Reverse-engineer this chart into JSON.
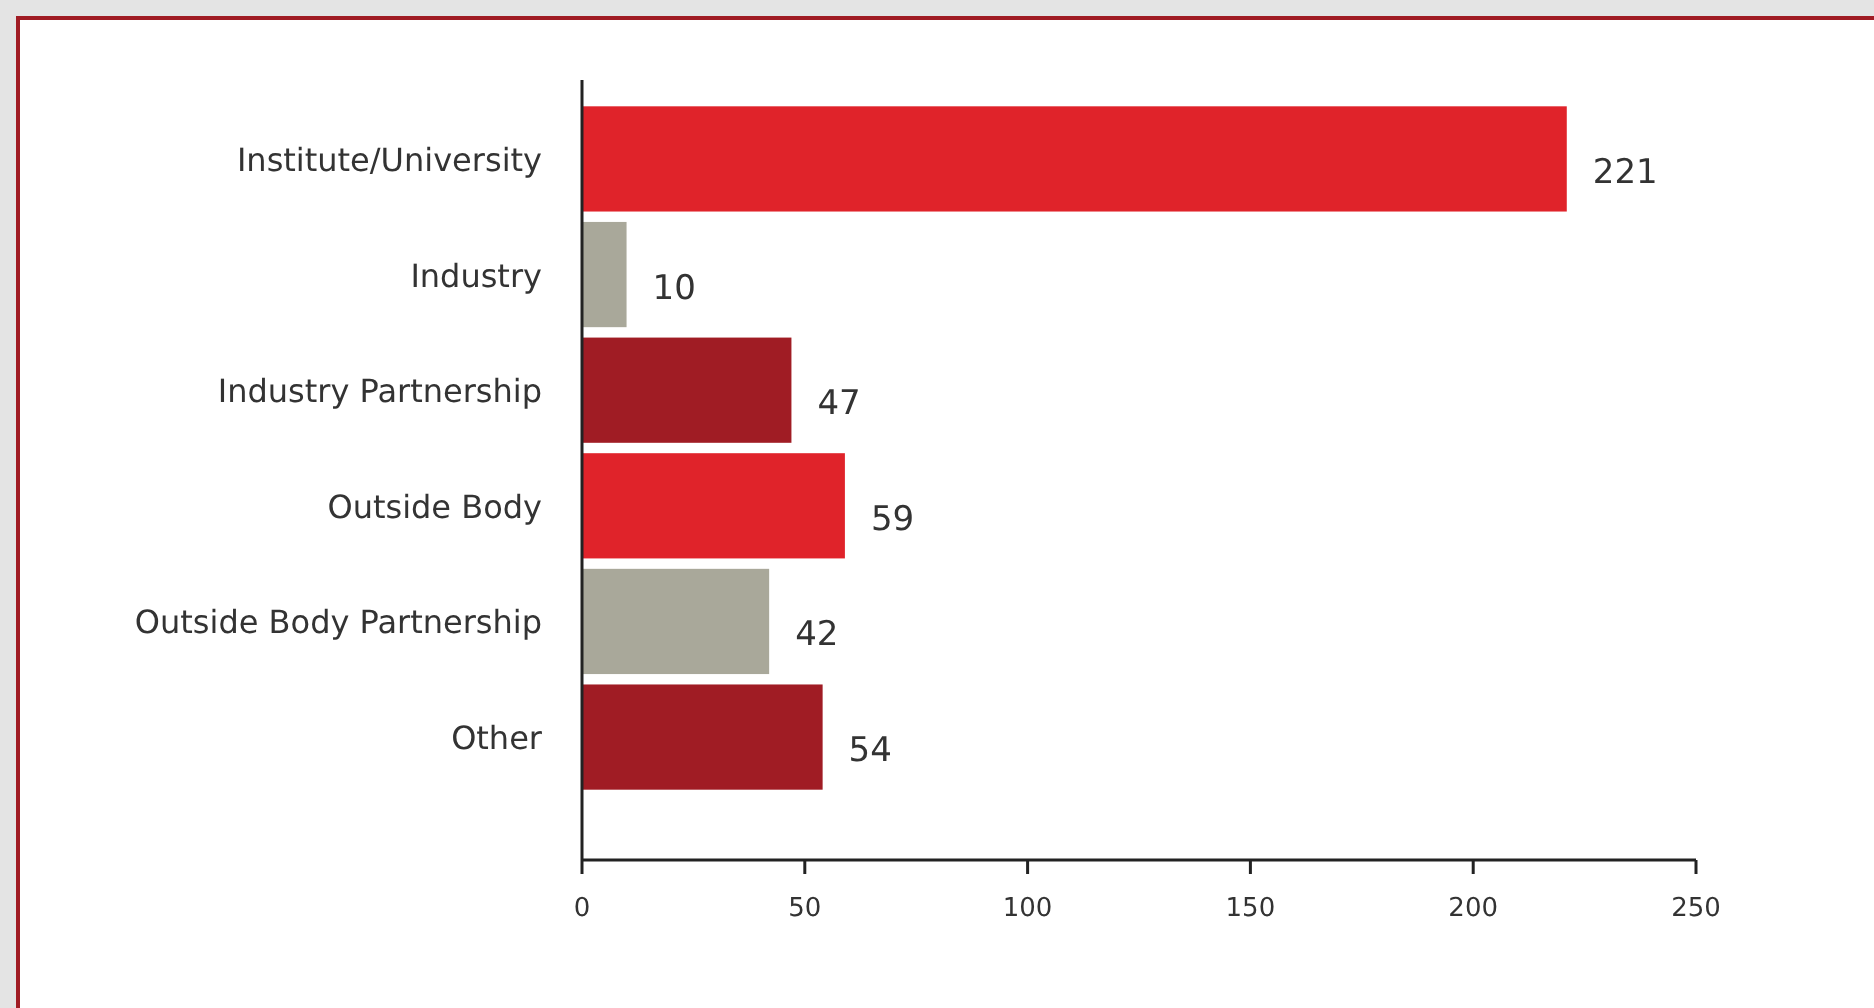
{
  "chart_data": {
    "type": "bar",
    "orientation": "horizontal",
    "categories": [
      "Institute/University",
      "Industry",
      "Industry Partnership",
      "Outside Body",
      "Outside Body Partnership",
      "Other"
    ],
    "values": [
      221,
      10,
      47,
      59,
      42,
      54
    ],
    "colors": [
      "#e0232a",
      "#a9a89a",
      "#a01c24",
      "#e0232a",
      "#a9a89a",
      "#a01c24"
    ],
    "xlim": [
      0,
      250
    ],
    "xticks": [
      0,
      50,
      100,
      150,
      200,
      250
    ],
    "data_labels": true
  }
}
